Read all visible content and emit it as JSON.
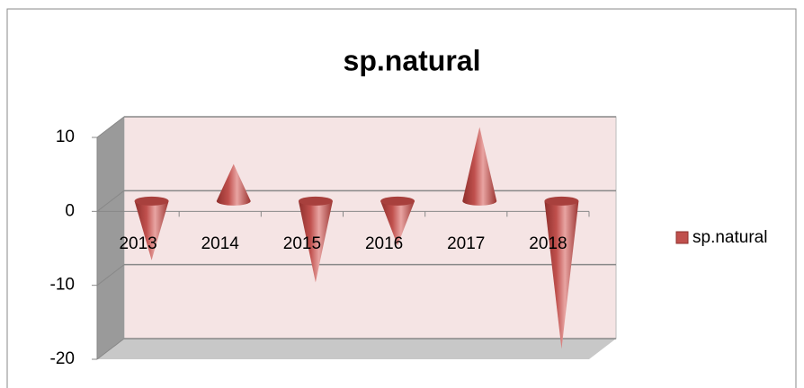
{
  "chart_data": {
    "type": "cone3d",
    "title": "sp.natural",
    "categories": [
      "2013",
      "2014",
      "2015",
      "2016",
      "2017",
      "2018"
    ],
    "series": [
      {
        "name": "sp.natural",
        "color": "#c0504d",
        "values": [
          -8,
          5,
          -11,
          -6,
          10,
          -20
        ]
      }
    ],
    "ylim": [
      -20,
      10
    ],
    "yticks": [
      -20,
      -10,
      0,
      10
    ],
    "grid": true,
    "legend": "right"
  }
}
